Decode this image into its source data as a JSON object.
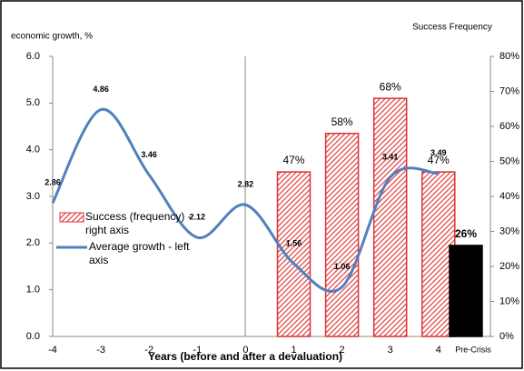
{
  "chart_data": {
    "type": "combo",
    "y_axis_label": "economic growth, %",
    "y2_axis_label": "Success Frequency",
    "x_axis_label": "Years (before and after a devaluation)",
    "categories": [
      "-4",
      "-3",
      "-2",
      "-1",
      "0",
      "1",
      "2",
      "3",
      "4",
      "Pre-Crisis"
    ],
    "ylim": [
      0,
      6
    ],
    "yticks": [
      {
        "value": 0,
        "label": "0.0"
      },
      {
        "value": 1,
        "label": "1.0"
      },
      {
        "value": 2,
        "label": "2.0"
      },
      {
        "value": 3,
        "label": "3.0"
      },
      {
        "value": 4,
        "label": "4.0"
      },
      {
        "value": 5,
        "label": "5.0"
      },
      {
        "value": 6,
        "label": "6.0"
      }
    ],
    "y2lim": [
      0,
      80
    ],
    "y2ticks": [
      {
        "value": 0,
        "label": "0%"
      },
      {
        "value": 10,
        "label": "10%"
      },
      {
        "value": 20,
        "label": "20%"
      },
      {
        "value": 30,
        "label": "30%"
      },
      {
        "value": 40,
        "label": "40%"
      },
      {
        "value": 50,
        "label": "50%"
      },
      {
        "value": 60,
        "label": "60%"
      },
      {
        "value": 70,
        "label": "70%"
      },
      {
        "value": 80,
        "label": "80%"
      }
    ],
    "series": [
      {
        "name": "Success (frequency) - right axis",
        "type": "bar",
        "axis": "y2",
        "color": "#e03030",
        "point_colors": [
          null,
          null,
          null,
          null,
          null,
          "#e03030",
          "#e03030",
          "#e03030",
          "#e03030",
          "#000000"
        ],
        "values": [
          null,
          null,
          null,
          null,
          null,
          47,
          58,
          68,
          47,
          26
        ],
        "value_labels": [
          null,
          null,
          null,
          null,
          null,
          "47%",
          "58%",
          "68%",
          "47%",
          "26%"
        ]
      },
      {
        "name": "Average growth - left axis",
        "type": "line",
        "color": "#4f81bd",
        "values": [
          2.86,
          4.86,
          3.46,
          2.12,
          2.82,
          1.56,
          1.06,
          3.41,
          3.49,
          null
        ]
      }
    ]
  }
}
